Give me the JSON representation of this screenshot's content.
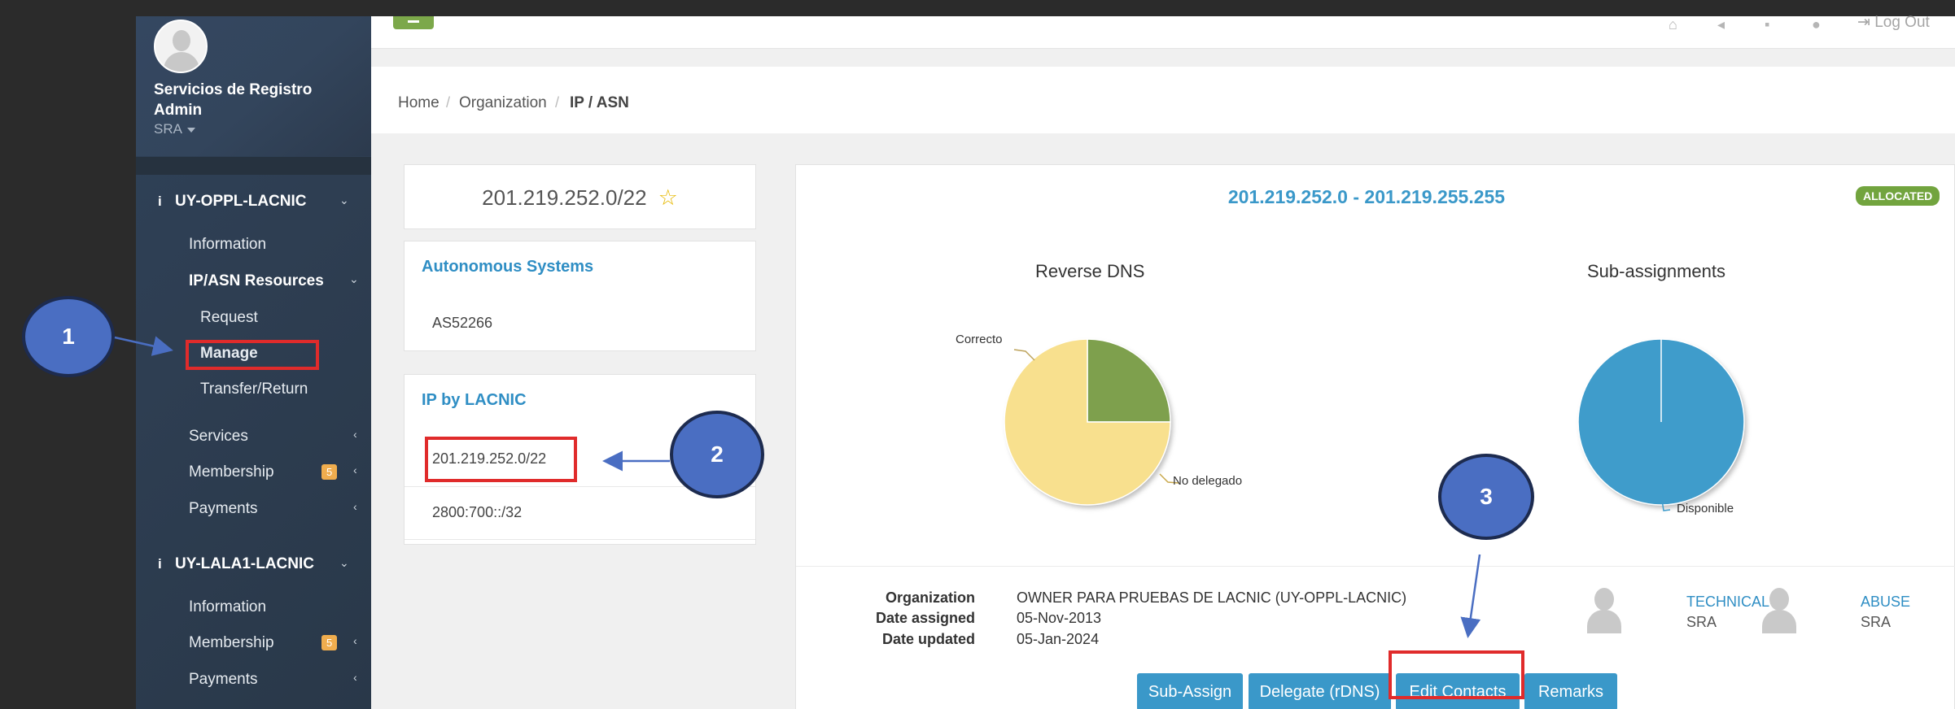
{
  "sidebar": {
    "user_name": "Servicios de Registro Admin",
    "user_role": "SRA",
    "org1": {
      "name": "UY-OPPL-LACNIC",
      "items": {
        "information": "Information",
        "resources": "IP/ASN Resources",
        "request": "Request",
        "manage": "Manage",
        "transfer": "Transfer/Return",
        "services": "Services",
        "membership": "Membership",
        "membership_badge": "5",
        "payments": "Payments"
      }
    },
    "org2": {
      "name": "UY-LALA1-LACNIC",
      "items": {
        "information": "Information",
        "membership": "Membership",
        "membership_badge": "5",
        "payments": "Payments"
      }
    }
  },
  "topbar": {
    "logout": "Log Out"
  },
  "breadcrumb": {
    "home": "Home",
    "organization": "Organization",
    "current": "IP / ASN",
    "sep": "/"
  },
  "prefix_card": {
    "title": "201.219.252.0/22",
    "star": "☆"
  },
  "as_card": {
    "title": "Autonomous Systems",
    "items": [
      "AS52266"
    ]
  },
  "ip_card": {
    "title": "IP by LACNIC",
    "items": [
      "201.219.252.0/22",
      "2800:700::/32"
    ]
  },
  "detail": {
    "range": "201.219.252.0 - 201.219.255.255",
    "status": "ALLOCATED",
    "organization_label": "Organization",
    "organization_value": "OWNER PARA PRUEBAS DE LACNIC (UY-OPPL-LACNIC)",
    "assigned_label": "Date assigned",
    "assigned_value": "05-Nov-2013",
    "updated_label": "Date updated",
    "updated_value": "05-Jan-2024",
    "contacts": [
      {
        "type": "TECHNICAL",
        "value": "SRA"
      },
      {
        "type": "ABUSE",
        "value": "SRA"
      }
    ],
    "buttons": {
      "sub_assign": "Sub-Assign",
      "delegate": "Delegate (rDNS)",
      "edit_contacts": "Edit Contacts",
      "remarks": "Remarks"
    }
  },
  "chart_data": [
    {
      "type": "pie",
      "title": "Reverse DNS",
      "categories": [
        "Correcto",
        "No delegado"
      ],
      "values": [
        25,
        75
      ],
      "colors": [
        "#7ea04d",
        "#f8e08e"
      ]
    },
    {
      "type": "pie",
      "title": "Sub-assignments",
      "categories": [
        "Disponible"
      ],
      "values": [
        100
      ],
      "colors": [
        "#3f9ccb"
      ]
    }
  ],
  "annotations": {
    "step1": "1",
    "step2": "2",
    "step3": "3"
  },
  "colors": {
    "accent": "#3a98c9",
    "sidebar": "#2f4158",
    "annotation_red": "#e02b2b",
    "annotation_blue": "#4a6ec2"
  }
}
